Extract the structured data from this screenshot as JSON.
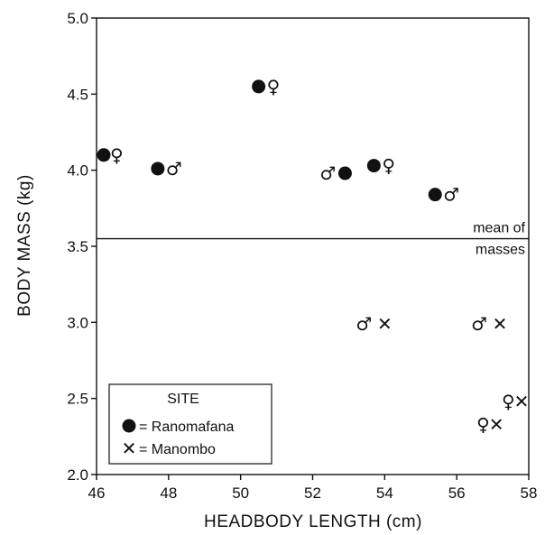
{
  "chart_data": {
    "type": "scatter",
    "xlabel": "HEADBODY LENGTH (cm)",
    "ylabel": "BODY MASS (kg)",
    "xlim": [
      46,
      58
    ],
    "ylim": [
      2.0,
      5.0
    ],
    "x_ticks": [
      "46",
      "48",
      "50",
      "52",
      "54",
      "56",
      "58"
    ],
    "y_ticks": [
      "2.0",
      "2.5",
      "3.0",
      "3.5",
      "4.0",
      "4.5",
      "5.0"
    ],
    "grid": false,
    "reference_line": {
      "y": 3.55,
      "label_line1": "mean of",
      "label_line2": "masses"
    },
    "series": [
      {
        "name": "Ranomafana",
        "marker": "filled-circle",
        "points": [
          {
            "x": 46.2,
            "y": 4.1,
            "sex": "♀"
          },
          {
            "x": 47.7,
            "y": 4.01,
            "sex": "♂"
          },
          {
            "x": 50.5,
            "y": 4.55,
            "sex": "♀"
          },
          {
            "x": 52.9,
            "y": 3.98,
            "sex": "♂"
          },
          {
            "x": 53.7,
            "y": 4.03,
            "sex": "♀"
          },
          {
            "x": 55.4,
            "y": 3.84,
            "sex": "♂"
          }
        ]
      },
      {
        "name": "Manombo",
        "marker": "x",
        "points": [
          {
            "x": 54.0,
            "y": 2.99,
            "sex": "♂"
          },
          {
            "x": 57.2,
            "y": 2.99,
            "sex": "♂"
          },
          {
            "x": 57.8,
            "y": 2.48,
            "sex": "♀"
          },
          {
            "x": 57.1,
            "y": 2.33,
            "sex": "♀"
          }
        ]
      }
    ],
    "legend": {
      "title": "SITE",
      "position": "bottom-left",
      "entries": [
        {
          "marker": "filled-circle",
          "label": "= Ranomafana"
        },
        {
          "marker": "x",
          "label": "= Manombo"
        }
      ]
    },
    "colors": {
      "marker": "#111111",
      "axis": "#111111"
    }
  }
}
